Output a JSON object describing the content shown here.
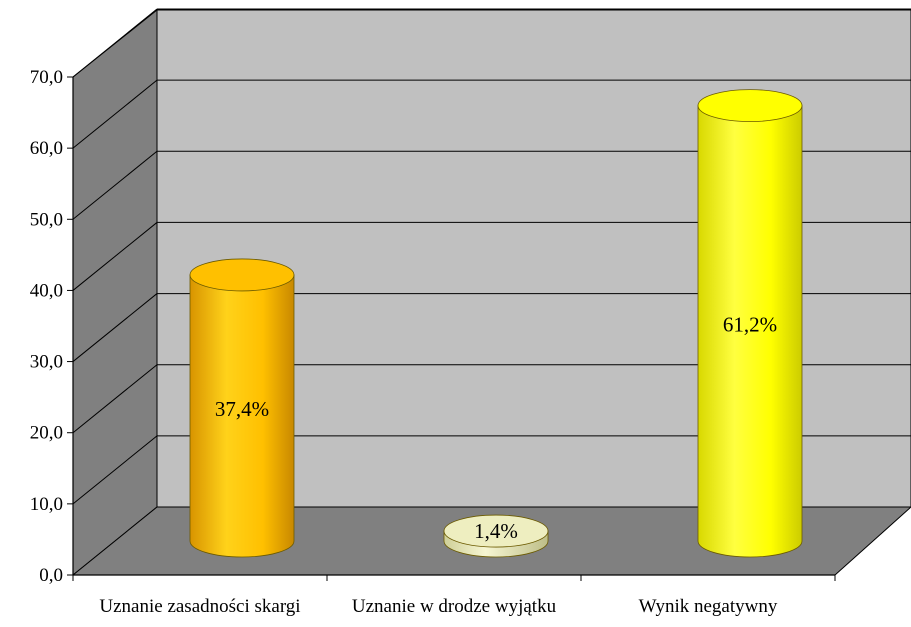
{
  "chart_data": {
    "type": "bar",
    "style": "3d-cylinder",
    "categories": [
      "Uznanie zasadności skargi",
      "Uznanie w drodze wyjątku",
      "Wynik negatywny"
    ],
    "values": [
      37.4,
      1.4,
      61.2
    ],
    "data_labels": [
      "37,4%",
      "1,4%",
      "61,2%"
    ],
    "colors": [
      "#FFC000",
      "#EEEEC0",
      "#FFFF00"
    ],
    "y_ticks": [
      "0,0",
      "10,0",
      "20,0",
      "30,0",
      "40,0",
      "50,0",
      "60,0",
      "70,0"
    ],
    "ylim": [
      0,
      70
    ],
    "grid": true,
    "legend": "none",
    "title": "",
    "xlabel": "",
    "ylabel": ""
  }
}
